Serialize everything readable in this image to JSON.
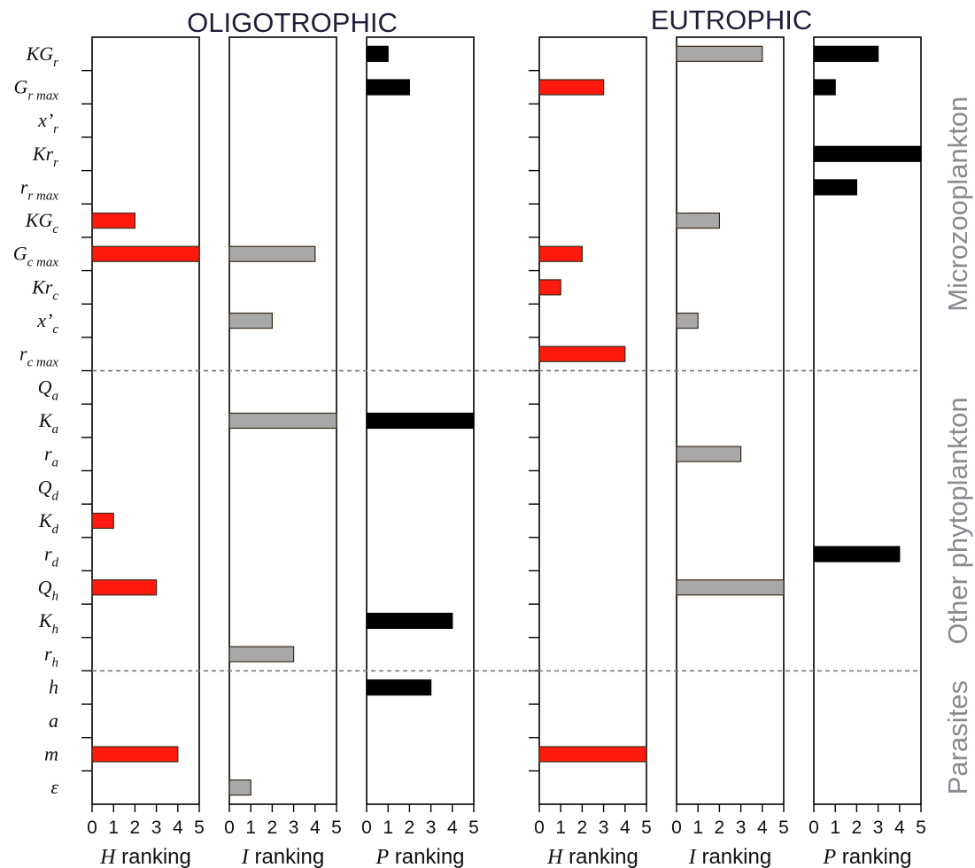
{
  "titles": {
    "oligotrophic": "OLIGOTROPHIC",
    "eutrophic": "EUTROPHIC"
  },
  "colors": {
    "H": "#ff1a0f",
    "I": "#a8a8a8",
    "P": "#000000",
    "group_label": "#8a8a92"
  },
  "chart_data": {
    "type": "bar",
    "orientation": "horizontal",
    "parameters": [
      {
        "base": "KG",
        "sub": "r",
        "prime": false
      },
      {
        "base": "G",
        "sub": "r max",
        "prime": false
      },
      {
        "base": "x",
        "sub": "r",
        "prime": true
      },
      {
        "base": "Kr",
        "sub": "r",
        "prime": false
      },
      {
        "base": "r",
        "sub": "r max",
        "prime": false
      },
      {
        "base": "KG",
        "sub": "c",
        "prime": false
      },
      {
        "base": "G",
        "sub": "c max",
        "prime": false
      },
      {
        "base": "Kr",
        "sub": "c",
        "prime": false
      },
      {
        "base": "x",
        "sub": "c",
        "prime": true
      },
      {
        "base": "r",
        "sub": "c max",
        "prime": false
      },
      {
        "base": "Q",
        "sub": "a",
        "prime": false
      },
      {
        "base": "K",
        "sub": "a",
        "prime": false
      },
      {
        "base": "r",
        "sub": "a",
        "prime": false
      },
      {
        "base": "Q",
        "sub": "d",
        "prime": false
      },
      {
        "base": "K",
        "sub": "d",
        "prime": false
      },
      {
        "base": "r",
        "sub": "d",
        "prime": false
      },
      {
        "base": "Q",
        "sub": "h",
        "prime": false
      },
      {
        "base": "K",
        "sub": "h",
        "prime": false
      },
      {
        "base": "r",
        "sub": "h",
        "prime": false
      },
      {
        "base": "h",
        "sub": "",
        "prime": false
      },
      {
        "base": "a",
        "sub": "",
        "prime": false
      },
      {
        "base": "m",
        "sub": "",
        "prime": false
      },
      {
        "base": "ε",
        "sub": "",
        "prime": false
      }
    ],
    "groups": [
      {
        "name": "Microzooplankton",
        "from": 0,
        "to": 9
      },
      {
        "name": "Other phytoplankton",
        "from": 10,
        "to": 18
      },
      {
        "name": "Parasites",
        "from": 19,
        "to": 22
      }
    ],
    "xlim": [
      0,
      5
    ],
    "xticks": [
      "0",
      "1",
      "2",
      "3",
      "4",
      "5"
    ],
    "panels": [
      {
        "condition": "OLIGOTROPHIC",
        "metric": "H",
        "axis_label": "ranking",
        "values": [
          0,
          0,
          0,
          0,
          0,
          2,
          5,
          0,
          0,
          0,
          0,
          0,
          0,
          0,
          1,
          0,
          3,
          0,
          0,
          0,
          0,
          4,
          0
        ]
      },
      {
        "condition": "OLIGOTROPHIC",
        "metric": "I",
        "axis_label": "ranking",
        "values": [
          0,
          0,
          0,
          0,
          0,
          0,
          4,
          0,
          2,
          0,
          0,
          5,
          0,
          0,
          0,
          0,
          0,
          0,
          3,
          0,
          0,
          0,
          1
        ]
      },
      {
        "condition": "OLIGOTROPHIC",
        "metric": "P",
        "axis_label": "ranking",
        "values": [
          1,
          2,
          0,
          0,
          0,
          0,
          0,
          0,
          0,
          0,
          0,
          5,
          0,
          0,
          0,
          0,
          0,
          4,
          0,
          3,
          0,
          0,
          0
        ]
      },
      {
        "condition": "EUTROPHIC",
        "metric": "H",
        "axis_label": "ranking",
        "values": [
          0,
          3,
          0,
          0,
          0,
          0,
          2,
          1,
          0,
          4,
          0,
          0,
          0,
          0,
          0,
          0,
          0,
          0,
          0,
          0,
          0,
          5,
          0
        ]
      },
      {
        "condition": "EUTROPHIC",
        "metric": "I",
        "axis_label": "ranking",
        "values": [
          4,
          0,
          0,
          0,
          0,
          2,
          0,
          0,
          1,
          0,
          0,
          0,
          3,
          0,
          0,
          0,
          5,
          0,
          0,
          0,
          0,
          0,
          0
        ]
      },
      {
        "condition": "EUTROPHIC",
        "metric": "P",
        "axis_label": "ranking",
        "values": [
          3,
          1,
          0,
          5,
          2,
          0,
          0,
          0,
          0,
          0,
          0,
          0,
          0,
          0,
          0,
          4,
          0,
          0,
          0,
          0,
          0,
          0,
          0
        ]
      }
    ]
  }
}
